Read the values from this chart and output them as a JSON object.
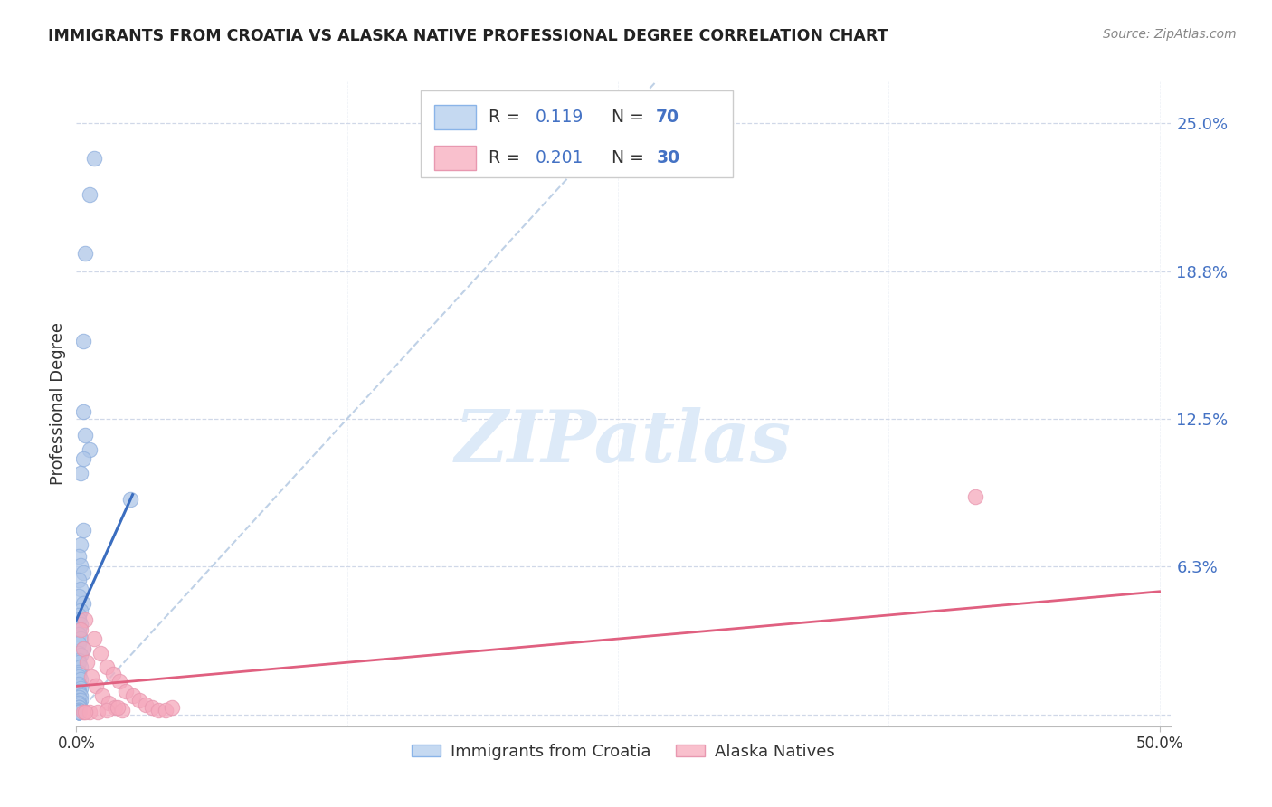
{
  "title": "IMMIGRANTS FROM CROATIA VS ALASKA NATIVE PROFESSIONAL DEGREE CORRELATION CHART",
  "source": "Source: ZipAtlas.com",
  "ylabel": "Professional Degree",
  "xlim": [
    0.0,
    0.505
  ],
  "ylim": [
    -0.005,
    0.268
  ],
  "xmin": 0.0,
  "xmax": 0.5,
  "ymin": 0.0,
  "ymax": 0.25,
  "R_blue": "0.119",
  "N_blue": "70",
  "R_pink": "0.201",
  "N_pink": "30",
  "blue_color": "#aec6e8",
  "pink_color": "#f5a8bc",
  "blue_line_color": "#3a6dbf",
  "pink_line_color": "#e06080",
  "diag_color": "#b8cce4",
  "label_color": "#4472c4",
  "text_dark": "#333333",
  "grid_color": "#d0d8e8",
  "watermark_color": "#ddeaf8",
  "blue_label": "Immigrants from Croatia",
  "pink_label": "Alaska Natives",
  "blue_scatter_x": [
    0.008,
    0.006,
    0.004,
    0.003,
    0.003,
    0.004,
    0.006,
    0.003,
    0.002,
    0.003,
    0.002,
    0.001,
    0.002,
    0.003,
    0.001,
    0.002,
    0.001,
    0.003,
    0.002,
    0.001,
    0.001,
    0.002,
    0.001,
    0.001,
    0.002,
    0.001,
    0.003,
    0.001,
    0.002,
    0.001,
    0.001,
    0.002,
    0.001,
    0.001,
    0.001,
    0.002,
    0.001,
    0.001,
    0.002,
    0.001,
    0.001,
    0.001,
    0.002,
    0.001,
    0.001,
    0.001,
    0.002,
    0.001,
    0.001,
    0.001,
    0.001,
    0.001,
    0.001,
    0.001,
    0.001,
    0.001,
    0.001,
    0.001,
    0.001,
    0.001,
    0.001,
    0.001,
    0.001,
    0.001,
    0.001,
    0.001,
    0.001,
    0.001,
    0.001,
    0.025
  ],
  "blue_scatter_y": [
    0.235,
    0.22,
    0.195,
    0.158,
    0.128,
    0.118,
    0.112,
    0.108,
    0.102,
    0.078,
    0.072,
    0.067,
    0.063,
    0.06,
    0.057,
    0.053,
    0.05,
    0.047,
    0.044,
    0.042,
    0.04,
    0.038,
    0.036,
    0.034,
    0.032,
    0.03,
    0.028,
    0.026,
    0.025,
    0.023,
    0.022,
    0.02,
    0.018,
    0.017,
    0.016,
    0.015,
    0.013,
    0.012,
    0.011,
    0.01,
    0.009,
    0.009,
    0.008,
    0.007,
    0.007,
    0.006,
    0.006,
    0.005,
    0.005,
    0.004,
    0.004,
    0.003,
    0.003,
    0.003,
    0.002,
    0.002,
    0.002,
    0.001,
    0.001,
    0.001,
    0.001,
    0.001,
    0.001,
    0.001,
    0.001,
    0.001,
    0.001,
    0.001,
    0.001,
    0.091
  ],
  "pink_scatter_x": [
    0.004,
    0.008,
    0.011,
    0.014,
    0.017,
    0.02,
    0.023,
    0.026,
    0.029,
    0.032,
    0.035,
    0.038,
    0.041,
    0.044,
    0.002,
    0.003,
    0.005,
    0.007,
    0.009,
    0.012,
    0.015,
    0.018,
    0.021,
    0.003,
    0.006,
    0.01,
    0.014,
    0.019,
    0.415,
    0.004
  ],
  "pink_scatter_y": [
    0.04,
    0.032,
    0.026,
    0.02,
    0.017,
    0.014,
    0.01,
    0.008,
    0.006,
    0.004,
    0.003,
    0.002,
    0.002,
    0.003,
    0.036,
    0.028,
    0.022,
    0.016,
    0.012,
    0.008,
    0.005,
    0.003,
    0.002,
    0.001,
    0.001,
    0.001,
    0.002,
    0.003,
    0.092,
    0.001
  ],
  "blue_line_x": [
    0.0,
    0.026
  ],
  "blue_line_y": [
    0.04,
    0.093
  ],
  "pink_line_x": [
    0.0,
    0.5
  ],
  "pink_line_y": [
    0.012,
    0.052
  ]
}
